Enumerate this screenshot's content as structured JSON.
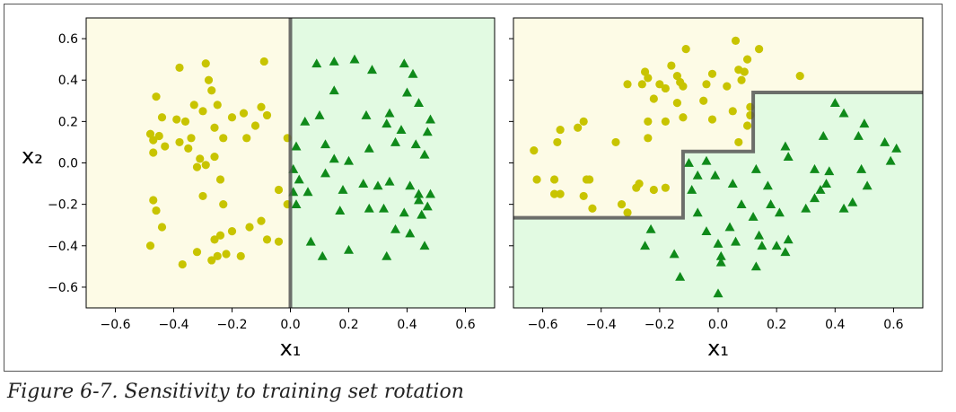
{
  "caption": "Figure 6-7. Sensitivity to training set rotation",
  "colors": {
    "class0_region": "#fdfbe6",
    "class1_region": "#e2fae2",
    "class0_marker": "#c8c400",
    "class1_marker": "#0f8a1a",
    "boundary": "#555555"
  },
  "chart_data": [
    {
      "type": "scatter",
      "title": "",
      "xlabel": "x₁",
      "ylabel": "x₂",
      "xlim": [
        -0.7,
        0.7
      ],
      "ylim": [
        -0.7,
        0.7
      ],
      "xticks": [
        -0.6,
        -0.4,
        -0.2,
        0.0,
        0.2,
        0.4,
        0.6
      ],
      "yticks": [
        -0.6,
        -0.4,
        -0.2,
        0.0,
        0.2,
        0.4,
        0.6
      ],
      "xtick_labels": [
        "−0.6",
        "−0.4",
        "−0.2",
        "0.0",
        "0.2",
        "0.4",
        "0.6"
      ],
      "ytick_labels": [
        "−0.6",
        "−0.4",
        "−0.2",
        "0.0",
        "0.2",
        "0.4",
        "0.6"
      ],
      "decision_boundary": [
        [
          0.0,
          -0.7
        ],
        [
          0.0,
          0.7
        ]
      ],
      "series": [
        {
          "marker": "circle",
          "points": [
            [
              -0.48,
              0.14
            ],
            [
              -0.47,
              0.11
            ],
            [
              -0.45,
              0.13
            ],
            [
              -0.46,
              0.32
            ],
            [
              -0.44,
              0.22
            ],
            [
              -0.43,
              0.08
            ],
            [
              -0.47,
              0.05
            ],
            [
              -0.38,
              0.46
            ],
            [
              -0.36,
              0.2
            ],
            [
              -0.39,
              0.21
            ],
            [
              -0.34,
              0.12
            ],
            [
              -0.33,
              0.28
            ],
            [
              -0.3,
              0.25
            ],
            [
              -0.29,
              0.48
            ],
            [
              -0.27,
              0.35
            ],
            [
              -0.28,
              0.4
            ],
            [
              -0.25,
              0.28
            ],
            [
              -0.26,
              0.17
            ],
            [
              -0.23,
              0.12
            ],
            [
              -0.2,
              0.22
            ],
            [
              -0.16,
              0.24
            ],
            [
              -0.15,
              0.12
            ],
            [
              -0.12,
              0.18
            ],
            [
              -0.1,
              0.27
            ],
            [
              -0.08,
              0.23
            ],
            [
              -0.09,
              0.49
            ],
            [
              -0.38,
              0.1
            ],
            [
              -0.35,
              0.07
            ],
            [
              -0.31,
              0.02
            ],
            [
              -0.29,
              -0.01
            ],
            [
              -0.26,
              0.03
            ],
            [
              -0.32,
              -0.02
            ],
            [
              -0.24,
              -0.08
            ],
            [
              -0.3,
              -0.16
            ],
            [
              -0.47,
              -0.18
            ],
            [
              -0.46,
              -0.23
            ],
            [
              -0.44,
              -0.31
            ],
            [
              -0.48,
              -0.4
            ],
            [
              -0.37,
              -0.49
            ],
            [
              -0.32,
              -0.43
            ],
            [
              -0.27,
              -0.47
            ],
            [
              -0.25,
              -0.45
            ],
            [
              -0.22,
              -0.44
            ],
            [
              -0.26,
              -0.37
            ],
            [
              -0.24,
              -0.35
            ],
            [
              -0.2,
              -0.33
            ],
            [
              -0.23,
              -0.2
            ],
            [
              -0.14,
              -0.31
            ],
            [
              -0.1,
              -0.28
            ],
            [
              -0.17,
              -0.45
            ],
            [
              -0.08,
              -0.37
            ],
            [
              -0.04,
              -0.38
            ],
            [
              -0.04,
              -0.13
            ],
            [
              -0.01,
              0.12
            ],
            [
              -0.01,
              -0.2
            ]
          ]
        },
        {
          "marker": "triangle",
          "points": [
            [
              0.09,
              0.48
            ],
            [
              0.15,
              0.49
            ],
            [
              0.22,
              0.5
            ],
            [
              0.28,
              0.45
            ],
            [
              0.39,
              0.48
            ],
            [
              0.42,
              0.43
            ],
            [
              0.15,
              0.35
            ],
            [
              0.05,
              0.2
            ],
            [
              0.1,
              0.23
            ],
            [
              0.12,
              0.09
            ],
            [
              0.02,
              0.08
            ],
            [
              0.26,
              0.23
            ],
            [
              0.34,
              0.24
            ],
            [
              0.38,
              0.16
            ],
            [
              0.44,
              0.29
            ],
            [
              0.48,
              0.21
            ],
            [
              0.47,
              0.15
            ],
            [
              0.4,
              0.34
            ],
            [
              0.33,
              0.19
            ],
            [
              0.15,
              0.02
            ],
            [
              0.2,
              0.01
            ],
            [
              0.27,
              0.07
            ],
            [
              0.36,
              0.1
            ],
            [
              0.43,
              0.09
            ],
            [
              0.46,
              0.04
            ],
            [
              0.01,
              -0.03
            ],
            [
              0.03,
              -0.08
            ],
            [
              0.06,
              -0.14
            ],
            [
              0.12,
              -0.05
            ],
            [
              0.18,
              -0.13
            ],
            [
              0.25,
              -0.1
            ],
            [
              0.3,
              -0.11
            ],
            [
              0.34,
              -0.09
            ],
            [
              0.41,
              -0.11
            ],
            [
              0.44,
              -0.15
            ],
            [
              0.48,
              -0.15
            ],
            [
              0.01,
              -0.14
            ],
            [
              0.02,
              -0.2
            ],
            [
              0.07,
              -0.38
            ],
            [
              0.11,
              -0.45
            ],
            [
              0.17,
              -0.23
            ],
            [
              0.2,
              -0.42
            ],
            [
              0.27,
              -0.22
            ],
            [
              0.32,
              -0.22
            ],
            [
              0.33,
              -0.45
            ],
            [
              0.36,
              -0.32
            ],
            [
              0.39,
              -0.24
            ],
            [
              0.41,
              -0.34
            ],
            [
              0.44,
              -0.18
            ],
            [
              0.45,
              -0.25
            ],
            [
              0.46,
              -0.4
            ],
            [
              0.47,
              -0.21
            ]
          ]
        }
      ]
    },
    {
      "type": "scatter",
      "title": "",
      "xlabel": "x₁",
      "ylabel": "",
      "xlim": [
        -0.7,
        0.7
      ],
      "ylim": [
        -0.7,
        0.7
      ],
      "xticks": [
        -0.6,
        -0.4,
        -0.2,
        0.0,
        0.2,
        0.4,
        0.6
      ],
      "yticks": [
        -0.6,
        -0.4,
        -0.2,
        0.0,
        0.2,
        0.4,
        0.6
      ],
      "xtick_labels": [
        "−0.6",
        "−0.4",
        "−0.2",
        "0.0",
        "0.2",
        "0.4",
        "0.6"
      ],
      "ytick_labels": [],
      "decision_boundary": [
        [
          -0.7,
          -0.265
        ],
        [
          -0.12,
          -0.265
        ],
        [
          -0.12,
          0.055
        ],
        [
          0.12,
          0.055
        ],
        [
          0.12,
          0.34
        ],
        [
          0.7,
          0.34
        ]
      ],
      "series": [
        {
          "marker": "circle",
          "points": [
            [
              -0.63,
              0.06
            ],
            [
              -0.62,
              -0.08
            ],
            [
              -0.56,
              -0.08
            ],
            [
              -0.55,
              0.1
            ],
            [
              -0.54,
              0.16
            ],
            [
              -0.56,
              -0.15
            ],
            [
              -0.54,
              -0.15
            ],
            [
              -0.48,
              0.17
            ],
            [
              -0.46,
              0.2
            ],
            [
              -0.45,
              -0.08
            ],
            [
              -0.44,
              -0.08
            ],
            [
              -0.46,
              -0.16
            ],
            [
              -0.43,
              -0.22
            ],
            [
              -0.33,
              -0.2
            ],
            [
              -0.31,
              -0.24
            ],
            [
              -0.35,
              0.1
            ],
            [
              -0.31,
              0.38
            ],
            [
              -0.26,
              0.38
            ],
            [
              -0.25,
              0.44
            ],
            [
              -0.24,
              0.41
            ],
            [
              -0.22,
              0.31
            ],
            [
              -0.2,
              0.38
            ],
            [
              -0.18,
              0.36
            ],
            [
              -0.16,
              0.47
            ],
            [
              -0.14,
              0.42
            ],
            [
              -0.13,
              0.39
            ],
            [
              -0.12,
              0.37
            ],
            [
              -0.11,
              0.55
            ],
            [
              -0.14,
              0.29
            ],
            [
              -0.12,
              0.22
            ],
            [
              -0.18,
              0.2
            ],
            [
              -0.24,
              0.2
            ],
            [
              -0.24,
              0.12
            ],
            [
              -0.18,
              -0.12
            ],
            [
              -0.22,
              -0.13
            ],
            [
              -0.28,
              -0.12
            ],
            [
              -0.27,
              -0.1
            ],
            [
              -0.05,
              0.3
            ],
            [
              -0.02,
              0.21
            ],
            [
              -0.04,
              0.38
            ],
            [
              -0.02,
              0.43
            ],
            [
              0.03,
              0.37
            ],
            [
              0.07,
              0.45
            ],
            [
              0.08,
              0.4
            ],
            [
              0.09,
              0.44
            ],
            [
              0.1,
              0.5
            ],
            [
              0.06,
              0.59
            ],
            [
              0.14,
              0.55
            ],
            [
              0.05,
              0.25
            ],
            [
              0.1,
              0.18
            ],
            [
              0.11,
              0.23
            ],
            [
              0.11,
              0.27
            ],
            [
              0.07,
              0.1
            ],
            [
              0.28,
              0.42
            ]
          ]
        },
        {
          "marker": "triangle",
          "points": [
            [
              -0.1,
              0.0
            ],
            [
              -0.09,
              -0.13
            ],
            [
              -0.07,
              -0.06
            ],
            [
              -0.04,
              0.01
            ],
            [
              -0.01,
              -0.06
            ],
            [
              0.05,
              -0.1
            ],
            [
              0.08,
              -0.2
            ],
            [
              0.12,
              -0.26
            ],
            [
              0.14,
              -0.35
            ],
            [
              0.13,
              -0.03
            ],
            [
              0.17,
              -0.11
            ],
            [
              0.18,
              -0.2
            ],
            [
              0.21,
              -0.24
            ],
            [
              0.23,
              0.08
            ],
            [
              0.24,
              0.03
            ],
            [
              0.15,
              -0.4
            ],
            [
              0.13,
              -0.5
            ],
            [
              0.2,
              -0.4
            ],
            [
              0.23,
              -0.43
            ],
            [
              0.24,
              -0.37
            ],
            [
              -0.25,
              -0.4
            ],
            [
              -0.23,
              -0.32
            ],
            [
              -0.15,
              -0.44
            ],
            [
              -0.13,
              -0.55
            ],
            [
              -0.07,
              -0.24
            ],
            [
              -0.04,
              -0.33
            ],
            [
              0.0,
              -0.39
            ],
            [
              0.01,
              -0.45
            ],
            [
              0.01,
              -0.48
            ],
            [
              0.0,
              -0.63
            ],
            [
              0.04,
              -0.31
            ],
            [
              0.06,
              -0.38
            ],
            [
              0.3,
              -0.22
            ],
            [
              0.33,
              -0.03
            ],
            [
              0.33,
              -0.17
            ],
            [
              0.35,
              -0.13
            ],
            [
              0.37,
              -0.1
            ],
            [
              0.38,
              -0.04
            ],
            [
              0.36,
              0.13
            ],
            [
              0.4,
              0.29
            ],
            [
              0.43,
              0.24
            ],
            [
              0.43,
              -0.22
            ],
            [
              0.46,
              -0.19
            ],
            [
              0.48,
              0.13
            ],
            [
              0.49,
              -0.03
            ],
            [
              0.5,
              0.19
            ],
            [
              0.51,
              -0.11
            ],
            [
              0.57,
              0.1
            ],
            [
              0.59,
              0.01
            ],
            [
              0.61,
              0.07
            ]
          ]
        }
      ]
    }
  ]
}
